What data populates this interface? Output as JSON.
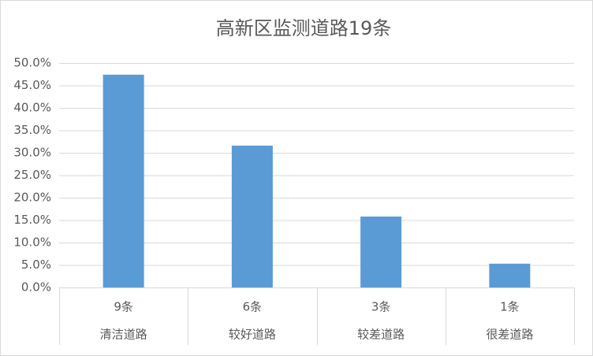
{
  "chart_data": {
    "type": "bar",
    "title": "高新区监测道路19条",
    "categories": [
      "清洁道路",
      "较好道路",
      "较差道路",
      "很差道路"
    ],
    "category_counts": [
      "9条",
      "6条",
      "3条",
      "1条"
    ],
    "values": [
      47.4,
      31.6,
      15.8,
      5.3
    ],
    "color": "#5b9bd5",
    "ylim": [
      0,
      50
    ],
    "yticks": [
      {
        "value": 0,
        "label": "0.0%"
      },
      {
        "value": 5,
        "label": "5.0%"
      },
      {
        "value": 10,
        "label": "10.0%"
      },
      {
        "value": 15,
        "label": "15.0%"
      },
      {
        "value": 20,
        "label": "20.0%"
      },
      {
        "value": 25,
        "label": "25.0%"
      },
      {
        "value": 30,
        "label": "30.0%"
      },
      {
        "value": 35,
        "label": "35.0%"
      },
      {
        "value": 40,
        "label": "40.0%"
      },
      {
        "value": 45,
        "label": "45.0%"
      },
      {
        "value": 50,
        "label": "50.0%"
      }
    ],
    "grid": true
  }
}
